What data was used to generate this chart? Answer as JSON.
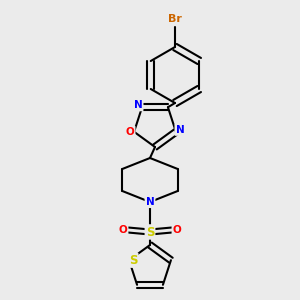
{
  "bg_color": "#ebebeb",
  "bond_color": "#000000",
  "colors": {
    "Br": "#cc6600",
    "N": "#0000ff",
    "O": "#ff0000",
    "S": "#cccc00",
    "C": "#000000"
  },
  "font_size": 7.5,
  "lw": 1.5
}
